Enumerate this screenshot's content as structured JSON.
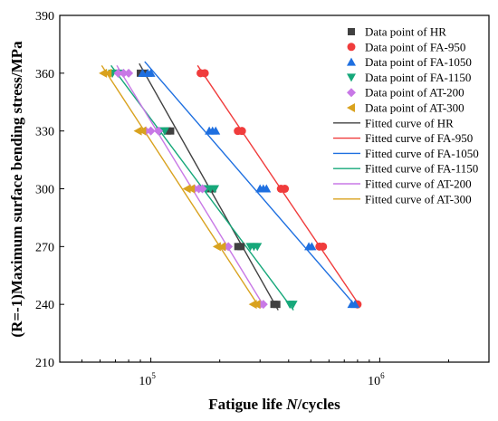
{
  "chart_data": {
    "type": "scatter",
    "xlabel_prefix": "Fatigue life ",
    "xlabel_var": "N",
    "xlabel_suffix": "/cycles",
    "ylabel": "(R=-1)Maximum surface bending stress/MPa",
    "xscale": "log",
    "xlim": [
      40000,
      3000000
    ],
    "ylim": [
      210,
      390
    ],
    "yticks": [
      "210",
      "240",
      "270",
      "300",
      "330",
      "360",
      "390"
    ],
    "xticks": [
      {
        "value": 100000,
        "base": "10",
        "exp": "5"
      },
      {
        "value": 1000000,
        "base": "10",
        "exp": "6"
      }
    ],
    "legend_position": "top-right",
    "grid": false,
    "series": [
      {
        "name": "Data point of HR",
        "marker": "square",
        "color": "#404040",
        "points": [
          [
            90000,
            360
          ],
          [
            94000,
            360
          ],
          [
            118000,
            330
          ],
          [
            122000,
            330
          ],
          [
            180000,
            300
          ],
          [
            186000,
            300
          ],
          [
            240000,
            270
          ],
          [
            248000,
            270
          ],
          [
            345000,
            240
          ],
          [
            355000,
            240
          ]
        ]
      },
      {
        "name": "Data point of FA-950",
        "marker": "circle",
        "color": "#f03c3c",
        "points": [
          [
            165000,
            360
          ],
          [
            172000,
            360
          ],
          [
            240000,
            330
          ],
          [
            250000,
            330
          ],
          [
            370000,
            300
          ],
          [
            385000,
            300
          ],
          [
            545000,
            270
          ],
          [
            565000,
            270
          ],
          [
            800000,
            240
          ]
        ]
      },
      {
        "name": "Data point of FA-1050",
        "marker": "triangle-up",
        "color": "#1e6fe0",
        "points": [
          [
            92000,
            360
          ],
          [
            97000,
            360
          ],
          [
            100000,
            360
          ],
          [
            180000,
            330
          ],
          [
            186000,
            330
          ],
          [
            192000,
            330
          ],
          [
            300000,
            300
          ],
          [
            310000,
            300
          ],
          [
            320000,
            300
          ],
          [
            490000,
            270
          ],
          [
            505000,
            270
          ],
          [
            755000,
            240
          ],
          [
            780000,
            240
          ]
        ]
      },
      {
        "name": "Data point of FA-1150",
        "marker": "triangle-down",
        "color": "#16a87a",
        "points": [
          [
            68000,
            360
          ],
          [
            72000,
            360
          ],
          [
            110000,
            330
          ],
          [
            115000,
            330
          ],
          [
            175000,
            300
          ],
          [
            182000,
            300
          ],
          [
            190000,
            300
          ],
          [
            272000,
            270
          ],
          [
            282000,
            270
          ],
          [
            292000,
            270
          ],
          [
            405000,
            240
          ],
          [
            418000,
            240
          ]
        ]
      },
      {
        "name": "Data point of AT-200",
        "marker": "diamond",
        "color": "#c878e6",
        "points": [
          [
            72000,
            360
          ],
          [
            76000,
            360
          ],
          [
            80000,
            360
          ],
          [
            95000,
            330
          ],
          [
            100000,
            330
          ],
          [
            108000,
            330
          ],
          [
            155000,
            300
          ],
          [
            162000,
            300
          ],
          [
            168000,
            300
          ],
          [
            210000,
            270
          ],
          [
            218000,
            270
          ],
          [
            300000,
            240
          ],
          [
            310000,
            240
          ]
        ]
      },
      {
        "name": "Data point of AT-300",
        "marker": "triangle-left",
        "color": "#d9a21e",
        "points": [
          [
            62000,
            360
          ],
          [
            65000,
            360
          ],
          [
            88000,
            330
          ],
          [
            92000,
            330
          ],
          [
            144000,
            300
          ],
          [
            150000,
            300
          ],
          [
            195000,
            270
          ],
          [
            205000,
            270
          ],
          [
            280000,
            240
          ],
          [
            290000,
            240
          ]
        ]
      },
      {
        "name": "Fitted curve of HR",
        "type": "line",
        "color": "#404040",
        "points": [
          [
            89000,
            365
          ],
          [
            360000,
            237
          ]
        ]
      },
      {
        "name": "Fitted curve of FA-950",
        "type": "line",
        "color": "#f03c3c",
        "points": [
          [
            160000,
            364
          ],
          [
            820000,
            239
          ]
        ]
      },
      {
        "name": "Fitted curve of FA-1050",
        "type": "line",
        "color": "#1e6fe0",
        "points": [
          [
            94000,
            366
          ],
          [
            800000,
            238
          ]
        ]
      },
      {
        "name": "Fitted curve of FA-1150",
        "type": "line",
        "color": "#16a87a",
        "points": [
          [
            67000,
            364
          ],
          [
            420000,
            237
          ]
        ]
      },
      {
        "name": "Fitted curve of AT-200",
        "type": "line",
        "color": "#c878e6",
        "points": [
          [
            71000,
            364
          ],
          [
            312000,
            239
          ]
        ]
      },
      {
        "name": "Fitted curve of AT-300",
        "type": "line",
        "color": "#d9a21e",
        "points": [
          [
            61000,
            364
          ],
          [
            296000,
            239
          ]
        ]
      }
    ]
  }
}
